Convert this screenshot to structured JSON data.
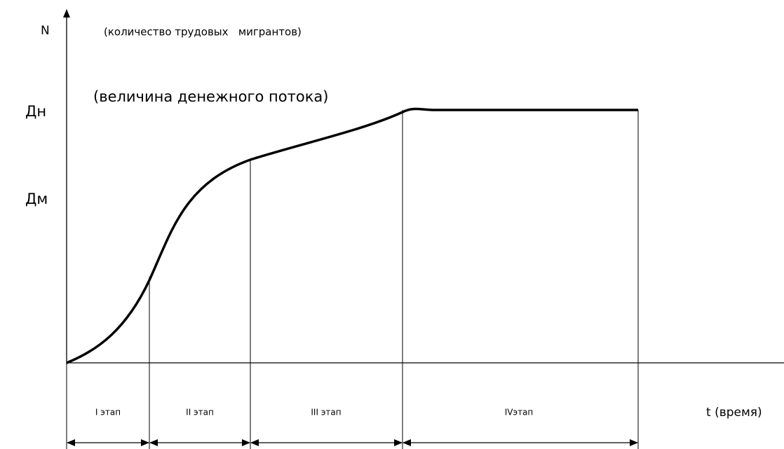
{
  "axis_labels": {
    "y": "N",
    "y_note": "(количество трудовых   мигрантов)",
    "dn": "Дн",
    "dn_note": "(величина денежного потока)",
    "dm": "Дм",
    "x": "t (время)"
  },
  "stages": [
    "I этап",
    "II этап",
    "III этап",
    "IVэтап"
  ]
}
